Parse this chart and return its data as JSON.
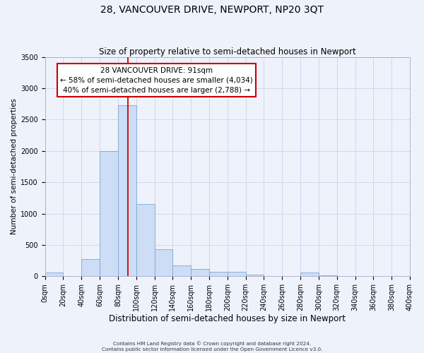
{
  "title": "28, VANCOUVER DRIVE, NEWPORT, NP20 3QT",
  "subtitle": "Size of property relative to semi-detached houses in Newport",
  "xlabel": "Distribution of semi-detached houses by size in Newport",
  "ylabel": "Number of semi-detached properties",
  "bar_edges": [
    0,
    20,
    40,
    60,
    80,
    100,
    120,
    140,
    160,
    180,
    200,
    220,
    240,
    260,
    280,
    300,
    320,
    340,
    360,
    380,
    400
  ],
  "bar_heights": [
    55,
    0,
    270,
    2000,
    2730,
    1150,
    430,
    175,
    110,
    75,
    65,
    30,
    0,
    0,
    60,
    10,
    0,
    0,
    0,
    0
  ],
  "bar_color": "#ccddf5",
  "bar_edge_color": "#7baad4",
  "vline_x": 91,
  "vline_color": "#cc0000",
  "ylim": [
    0,
    3500
  ],
  "xlim": [
    0,
    400
  ],
  "ytick_interval": 500,
  "xtick_labels": [
    "0sqm",
    "20sqm",
    "40sqm",
    "60sqm",
    "80sqm",
    "100sqm",
    "120sqm",
    "140sqm",
    "160sqm",
    "180sqm",
    "200sqm",
    "220sqm",
    "240sqm",
    "260sqm",
    "280sqm",
    "300sqm",
    "320sqm",
    "340sqm",
    "360sqm",
    "380sqm",
    "400sqm"
  ],
  "annotation_title": "28 VANCOUVER DRIVE: 91sqm",
  "annotation_line1": "← 58% of semi-detached houses are smaller (4,034)",
  "annotation_line2": "40% of semi-detached houses are larger (2,788) →",
  "annotation_box_color": "#ffffff",
  "annotation_box_edge": "#cc0000",
  "footer_line1": "Contains HM Land Registry data © Crown copyright and database right 2024.",
  "footer_line2": "Contains public sector information licensed under the Open Government Licence v3.0.",
  "bg_color": "#eef2fb",
  "grid_color": "#c8d4ee",
  "title_fontsize": 10,
  "subtitle_fontsize": 8.5,
  "xlabel_fontsize": 8.5,
  "ylabel_fontsize": 7.5,
  "tick_labelsize": 7,
  "ann_fontsize": 7.5,
  "footer_fontsize": 5.2
}
